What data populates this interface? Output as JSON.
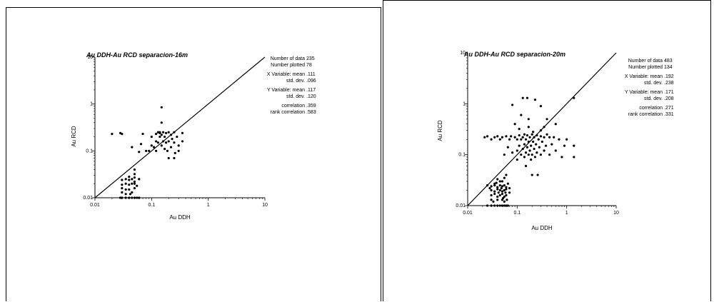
{
  "chart_data": [
    {
      "type": "scatter",
      "title": "Au DDH-Au RCD separacion-16m",
      "xlabel": "Au DDH",
      "ylabel": "Au RCD",
      "xscale": "log",
      "yscale": "log",
      "xlim": [
        0.01,
        10
      ],
      "ylim": [
        0.01,
        10
      ],
      "x_ticks": [
        "0.01",
        "0.1",
        "1",
        "10"
      ],
      "y_ticks": [
        "0.01",
        "0.1",
        "1",
        "10"
      ],
      "reference_line": "y = x",
      "stats": [
        {
          "label": "Number of data",
          "value": "235"
        },
        {
          "label": "Number plotted",
          "value": "78"
        },
        {
          "label": "X Variable: mean",
          "value": ".111"
        },
        {
          "label": "std. dev.",
          "value": ".096"
        },
        {
          "label": "Y Variable: mean",
          "value": ".117"
        },
        {
          "label": "std. dev.",
          "value": ".120"
        },
        {
          "label": "correlation",
          "value": ".359"
        },
        {
          "label": "rank correlation",
          "value": ".583"
        }
      ],
      "points": [
        [
          0.02,
          0.23
        ],
        [
          0.028,
          0.24
        ],
        [
          0.03,
          0.23
        ],
        [
          0.045,
          0.12
        ],
        [
          0.06,
          0.095
        ],
        [
          0.065,
          0.14
        ],
        [
          0.07,
          0.23
        ],
        [
          0.08,
          0.1
        ],
        [
          0.09,
          0.1
        ],
        [
          0.1,
          0.13
        ],
        [
          0.1,
          0.2
        ],
        [
          0.11,
          0.12
        ],
        [
          0.12,
          0.16
        ],
        [
          0.12,
          0.23
        ],
        [
          0.13,
          0.15
        ],
        [
          0.13,
          0.25
        ],
        [
          0.14,
          0.2
        ],
        [
          0.14,
          0.24
        ],
        [
          0.15,
          0.13
        ],
        [
          0.15,
          0.22
        ],
        [
          0.15,
          0.85
        ],
        [
          0.15,
          0.4
        ],
        [
          0.16,
          0.16
        ],
        [
          0.16,
          0.25
        ],
        [
          0.17,
          0.11
        ],
        [
          0.17,
          0.2
        ],
        [
          0.18,
          0.15
        ],
        [
          0.18,
          0.24
        ],
        [
          0.19,
          0.1
        ],
        [
          0.2,
          0.07
        ],
        [
          0.2,
          0.16
        ],
        [
          0.2,
          0.25
        ],
        [
          0.22,
          0.12
        ],
        [
          0.22,
          0.22
        ],
        [
          0.23,
          0.18
        ],
        [
          0.25,
          0.15
        ],
        [
          0.25,
          0.07
        ],
        [
          0.25,
          0.25
        ],
        [
          0.28,
          0.2
        ],
        [
          0.3,
          0.13
        ],
        [
          0.35,
          0.24
        ],
        [
          0.35,
          0.16
        ],
        [
          0.3,
          0.1
        ],
        [
          0.14,
          0.25
        ],
        [
          0.12,
          0.1
        ],
        [
          0.26,
          0.09
        ],
        [
          0.03,
          0.024
        ],
        [
          0.035,
          0.025
        ],
        [
          0.04,
          0.024
        ],
        [
          0.045,
          0.025
        ],
        [
          0.05,
          0.022
        ],
        [
          0.06,
          0.025
        ],
        [
          0.03,
          0.019
        ],
        [
          0.035,
          0.02
        ],
        [
          0.04,
          0.019
        ],
        [
          0.05,
          0.02
        ],
        [
          0.03,
          0.016
        ],
        [
          0.04,
          0.015
        ],
        [
          0.05,
          0.016
        ],
        [
          0.03,
          0.013
        ],
        [
          0.035,
          0.012
        ],
        [
          0.045,
          0.013
        ],
        [
          0.05,
          0.04
        ],
        [
          0.05,
          0.032
        ],
        [
          0.028,
          0.01
        ],
        [
          0.03,
          0.01
        ],
        [
          0.035,
          0.01
        ],
        [
          0.04,
          0.01
        ],
        [
          0.045,
          0.01
        ],
        [
          0.05,
          0.01
        ],
        [
          0.055,
          0.01
        ],
        [
          0.06,
          0.01
        ],
        [
          0.04,
          0.028
        ],
        [
          0.045,
          0.02
        ],
        [
          0.055,
          0.018
        ],
        [
          0.035,
          0.015
        ],
        [
          0.042,
          0.012
        ],
        [
          0.05,
          0.027
        ]
      ]
    },
    {
      "type": "scatter",
      "title": "Au DDH-Au RCD separacion-20m",
      "xlabel": "Au DDH",
      "ylabel": "Au RCD",
      "xscale": "log",
      "yscale": "log",
      "xlim": [
        0.01,
        10
      ],
      "ylim": [
        0.01,
        10
      ],
      "x_ticks": [
        "0.01",
        "0.1",
        "1",
        "10"
      ],
      "y_ticks": [
        "0.01",
        "0.1",
        "1",
        "10"
      ],
      "reference_line": "y = x",
      "stats": [
        {
          "label": "Number of data",
          "value": "483"
        },
        {
          "label": "Number plotted",
          "value": "134"
        },
        {
          "label": "X Variable: mean",
          "value": ".192"
        },
        {
          "label": "std. dev.",
          "value": ".238"
        },
        {
          "label": "Y Variable: mean",
          "value": ".171"
        },
        {
          "label": "std. dev.",
          "value": ".208"
        },
        {
          "label": "correlation",
          "value": ".271"
        },
        {
          "label": "rank correlation",
          "value": ".331"
        }
      ],
      "points": [
        [
          0.022,
          0.22
        ],
        [
          0.025,
          0.23
        ],
        [
          0.03,
          0.2
        ],
        [
          0.035,
          0.22
        ],
        [
          0.04,
          0.23
        ],
        [
          0.045,
          0.2
        ],
        [
          0.05,
          0.22
        ],
        [
          0.055,
          0.1
        ],
        [
          0.06,
          0.23
        ],
        [
          0.065,
          0.14
        ],
        [
          0.07,
          0.2
        ],
        [
          0.075,
          0.23
        ],
        [
          0.08,
          0.11
        ],
        [
          0.09,
          0.22
        ],
        [
          0.1,
          0.12
        ],
        [
          0.1,
          0.2
        ],
        [
          0.1,
          0.08
        ],
        [
          0.11,
          0.15
        ],
        [
          0.11,
          0.24
        ],
        [
          0.12,
          0.1
        ],
        [
          0.12,
          0.2
        ],
        [
          0.12,
          0.6
        ],
        [
          0.13,
          0.13
        ],
        [
          0.13,
          0.22
        ],
        [
          0.13,
          1.3
        ],
        [
          0.14,
          0.09
        ],
        [
          0.14,
          0.16
        ],
        [
          0.14,
          0.25
        ],
        [
          0.15,
          0.11
        ],
        [
          0.15,
          0.2
        ],
        [
          0.15,
          0.06
        ],
        [
          0.16,
          0.14
        ],
        [
          0.16,
          0.24
        ],
        [
          0.17,
          0.1
        ],
        [
          0.17,
          0.18
        ],
        [
          0.17,
          0.5
        ],
        [
          0.18,
          0.12
        ],
        [
          0.18,
          0.22
        ],
        [
          0.19,
          0.08
        ],
        [
          0.19,
          0.15
        ],
        [
          0.2,
          0.25
        ],
        [
          0.2,
          0.1
        ],
        [
          0.2,
          0.04
        ],
        [
          0.21,
          0.18
        ],
        [
          0.22,
          0.13
        ],
        [
          0.22,
          0.22
        ],
        [
          0.23,
          0.09
        ],
        [
          0.23,
          1.2
        ],
        [
          0.24,
          0.16
        ],
        [
          0.25,
          0.24
        ],
        [
          0.25,
          0.11
        ],
        [
          0.26,
          0.04
        ],
        [
          0.27,
          0.2
        ],
        [
          0.28,
          0.14
        ],
        [
          0.3,
          0.23
        ],
        [
          0.3,
          0.1
        ],
        [
          0.3,
          0.3
        ],
        [
          0.32,
          0.18
        ],
        [
          0.35,
          0.12
        ],
        [
          0.35,
          0.22
        ],
        [
          0.38,
          0.15
        ],
        [
          0.4,
          0.25
        ],
        [
          0.4,
          0.5
        ],
        [
          0.45,
          0.1
        ],
        [
          0.45,
          0.22
        ],
        [
          0.5,
          0.16
        ],
        [
          0.55,
          0.22
        ],
        [
          0.6,
          0.12
        ],
        [
          0.7,
          0.2
        ],
        [
          0.8,
          0.09
        ],
        [
          0.9,
          0.15
        ],
        [
          1.0,
          0.2
        ],
        [
          1.4,
          0.09
        ],
        [
          1.4,
          0.15
        ],
        [
          1.4,
          1.3
        ],
        [
          0.09,
          0.4
        ],
        [
          0.17,
          0.35
        ],
        [
          0.08,
          0.95
        ],
        [
          0.16,
          1.3
        ],
        [
          0.3,
          0.9
        ],
        [
          0.11,
          0.32
        ],
        [
          0.21,
          0.28
        ],
        [
          0.35,
          0.35
        ],
        [
          0.6,
          0.4
        ],
        [
          0.025,
          0.025
        ],
        [
          0.03,
          0.024
        ],
        [
          0.035,
          0.025
        ],
        [
          0.04,
          0.023
        ],
        [
          0.045,
          0.025
        ],
        [
          0.05,
          0.024
        ],
        [
          0.055,
          0.025
        ],
        [
          0.06,
          0.023
        ],
        [
          0.03,
          0.02
        ],
        [
          0.035,
          0.019
        ],
        [
          0.04,
          0.021
        ],
        [
          0.045,
          0.02
        ],
        [
          0.05,
          0.019
        ],
        [
          0.055,
          0.02
        ],
        [
          0.06,
          0.021
        ],
        [
          0.03,
          0.016
        ],
        [
          0.035,
          0.017
        ],
        [
          0.04,
          0.015
        ],
        [
          0.045,
          0.016
        ],
        [
          0.05,
          0.017
        ],
        [
          0.055,
          0.015
        ],
        [
          0.03,
          0.013
        ],
        [
          0.04,
          0.013
        ],
        [
          0.05,
          0.013
        ],
        [
          0.055,
          0.012
        ],
        [
          0.06,
          0.016
        ],
        [
          0.025,
          0.01
        ],
        [
          0.03,
          0.01
        ],
        [
          0.035,
          0.01
        ],
        [
          0.04,
          0.01
        ],
        [
          0.045,
          0.01
        ],
        [
          0.05,
          0.01
        ],
        [
          0.055,
          0.01
        ],
        [
          0.06,
          0.01
        ],
        [
          0.065,
          0.01
        ],
        [
          0.05,
          0.03
        ],
        [
          0.055,
          0.035
        ],
        [
          0.06,
          0.04
        ],
        [
          0.045,
          0.03
        ],
        [
          0.065,
          0.027
        ],
        [
          0.07,
          0.022
        ],
        [
          0.07,
          0.018
        ],
        [
          0.028,
          0.022
        ],
        [
          0.033,
          0.012
        ],
        [
          0.038,
          0.028
        ],
        [
          0.042,
          0.018
        ],
        [
          0.048,
          0.022
        ],
        [
          0.052,
          0.014
        ],
        [
          0.058,
          0.018
        ],
        [
          0.062,
          0.013
        ],
        [
          0.035,
          0.027
        ],
        [
          0.04,
          0.033
        ]
      ]
    }
  ]
}
